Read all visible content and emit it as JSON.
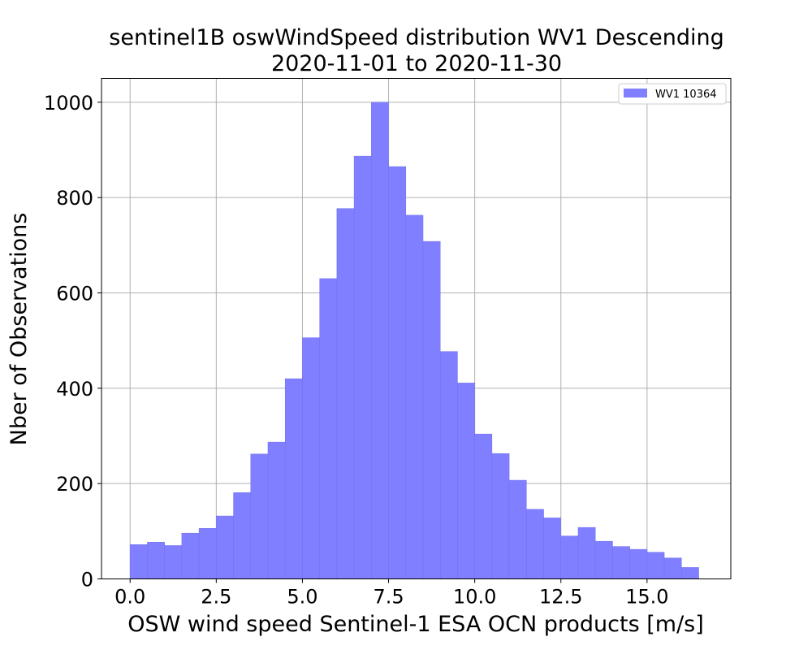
{
  "chart_data": {
    "type": "bar",
    "title": "sentinel1B oswWindSpeed distribution WV1 Descending",
    "subtitle": "2020-11-01 to 2020-11-30",
    "xlabel": "OSW wind speed Sentinel-1 ESA OCN products [m/s]",
    "ylabel": "Nber of Observations",
    "xlim": [
      -0.83,
      17.43
    ],
    "ylim": [
      0,
      1050
    ],
    "xticks": [
      0.0,
      2.5,
      5.0,
      7.5,
      10.0,
      12.5,
      15.0
    ],
    "xtick_labels": [
      "0.0",
      "2.5",
      "5.0",
      "7.5",
      "10.0",
      "12.5",
      "15.0"
    ],
    "yticks": [
      0,
      200,
      400,
      600,
      800,
      1000
    ],
    "ytick_labels": [
      "0",
      "200",
      "400",
      "600",
      "800",
      "1000"
    ],
    "grid": true,
    "legend_position": "top-right",
    "bin_width": 0.5,
    "series": [
      {
        "name": "WV1 10364",
        "color": "#7f7fff",
        "bin_starts": [
          0.0,
          0.5,
          1.0,
          1.5,
          2.0,
          2.5,
          3.0,
          3.5,
          4.0,
          4.5,
          5.0,
          5.5,
          6.0,
          6.5,
          7.0,
          7.5,
          8.0,
          8.5,
          9.0,
          9.5,
          10.0,
          10.5,
          11.0,
          11.5,
          12.0,
          12.5,
          13.0,
          13.5,
          14.0,
          14.5,
          15.0,
          15.5,
          16.0
        ],
        "values": [
          72,
          77,
          70,
          96,
          106,
          132,
          181,
          262,
          287,
          420,
          506,
          630,
          777,
          887,
          1000,
          865,
          763,
          708,
          477,
          411,
          304,
          263,
          207,
          146,
          128,
          90,
          108,
          79,
          68,
          62,
          56,
          44,
          24
        ]
      }
    ]
  }
}
